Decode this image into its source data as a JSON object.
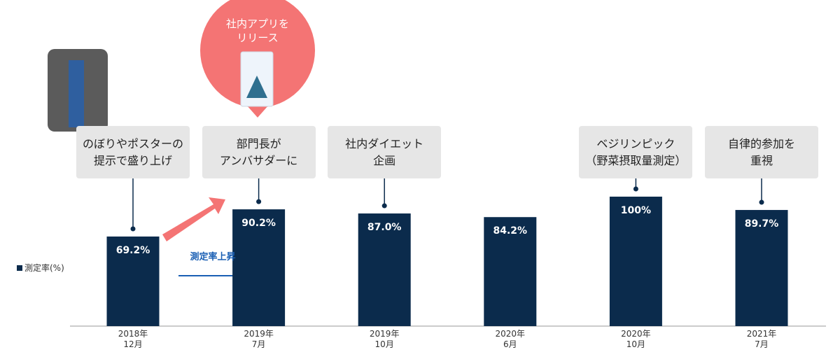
{
  "chart_data": {
    "type": "bar",
    "categories": [
      "2018年\n12月",
      "2019年\n7月",
      "2019年\n10月",
      "2020年\n6月",
      "2020年\n10月",
      "2021年\n7月"
    ],
    "series": [
      {
        "name": "測定率(%)",
        "color": "#0b2b4c",
        "values": [
          69.2,
          90.2,
          87.0,
          84.2,
          100,
          89.7
        ],
        "value_labels": [
          "69.2%",
          "90.2%",
          "87.0%",
          "84.2%",
          "100%",
          "89.7%"
        ]
      }
    ],
    "ylim": [
      0,
      100
    ],
    "callouts": [
      "のぼりやポスターの\n提示で盛り上げ",
      "部門長が\nアンバサダーに",
      "社内ダイエット\n企画",
      null,
      "ベジリンピック\n（野菜摂取量測定）",
      "自律的参加を\n重視"
    ],
    "app_release": "社内アプリを\nリリース",
    "trend_label": "測定率上昇"
  }
}
